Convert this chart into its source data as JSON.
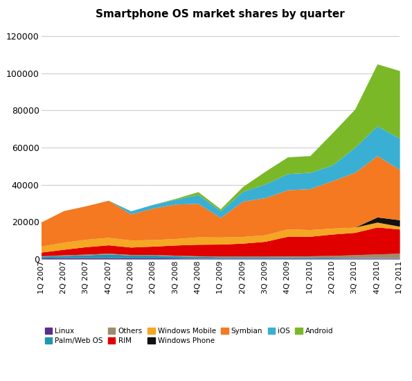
{
  "title": "Smartphone OS market shares by quarter",
  "quarters": [
    "1Q 2007",
    "2Q 2007",
    "3Q 2007",
    "4Q 2007",
    "1Q 2008",
    "2Q 2008",
    "3Q 2008",
    "4Q 2008",
    "1Q 2009",
    "2Q 2009",
    "3Q 2009",
    "4Q 2009",
    "1Q 2010",
    "2Q 2010",
    "3Q 2010",
    "4Q 2010",
    "1Q 2011"
  ],
  "series": {
    "Linux": [
      500,
      700,
      700,
      700,
      600,
      600,
      500,
      400,
      400,
      400,
      400,
      400,
      400,
      400,
      400,
      400,
      400
    ],
    "Palm/Web OS": [
      1000,
      1200,
      1500,
      2000,
      1500,
      1500,
      1200,
      1000,
      800,
      800,
      800,
      700,
      600,
      500,
      400,
      300,
      200
    ],
    "Others": [
      200,
      300,
      400,
      400,
      300,
      300,
      300,
      300,
      300,
      300,
      300,
      500,
      700,
      1000,
      1500,
      2000,
      2500
    ],
    "RIM": [
      2000,
      3000,
      4000,
      4500,
      4000,
      4500,
      5500,
      6200,
      6500,
      7000,
      8000,
      10600,
      10500,
      11500,
      12000,
      14500,
      13000
    ],
    "Windows Mobile": [
      3200,
      3800,
      4000,
      4000,
      3800,
      3500,
      3500,
      4000,
      3800,
      3600,
      3500,
      4000,
      3600,
      3200,
      2800,
      2600,
      1500
    ],
    "Windows Phone": [
      0,
      0,
      0,
      0,
      0,
      0,
      0,
      0,
      0,
      0,
      0,
      0,
      0,
      0,
      0,
      2800,
      3500
    ],
    "Symbian": [
      13000,
      17000,
      18000,
      20000,
      14000,
      17000,
      18500,
      18000,
      10500,
      19000,
      20000,
      21000,
      22000,
      25500,
      29500,
      33000,
      27000
    ],
    "iOS": [
      0,
      0,
      0,
      0,
      1700,
      2000,
      2600,
      4800,
      3700,
      5300,
      7400,
      8700,
      8800,
      8500,
      13500,
      16011,
      16883
    ],
    "Android": [
      0,
      0,
      0,
      0,
      0,
      0,
      500,
      1500,
      1000,
      2600,
      6800,
      9000,
      9000,
      17300,
      20500,
      33300,
      36350
    ]
  },
  "colors": {
    "Linux": "#5b2c8d",
    "Palm/Web OS": "#2196b0",
    "Others": "#9e8c6e",
    "RIM": "#e00000",
    "Windows Mobile": "#f5a623",
    "Windows Phone": "#111111",
    "Symbian": "#f47920",
    "iOS": "#3aafd4",
    "Android": "#7ab827"
  },
  "stack_order": [
    "Linux",
    "Palm/Web OS",
    "Others",
    "RIM",
    "Windows Mobile",
    "Windows Phone",
    "Symbian",
    "iOS",
    "Android"
  ],
  "legend_order": [
    [
      "Linux",
      "#5b2c8d"
    ],
    [
      "Palm/Web OS",
      "#2196b0"
    ],
    [
      "Others",
      "#9e8c6e"
    ],
    [
      "RIM",
      "#e00000"
    ],
    [
      "Windows Mobile",
      "#f5a623"
    ],
    [
      "Windows Phone",
      "#111111"
    ],
    [
      "Symbian",
      "#f47920"
    ],
    [
      "iOS",
      "#3aafd4"
    ],
    [
      "Android",
      "#7ab827"
    ]
  ],
  "ylim": [
    0,
    125000
  ],
  "yticks": [
    0,
    20000,
    40000,
    60000,
    80000,
    100000,
    120000
  ],
  "background_color": "#ffffff",
  "grid_color": "#cccccc",
  "title_fontsize": 11,
  "tick_fontsize": 9,
  "xtick_fontsize": 8
}
